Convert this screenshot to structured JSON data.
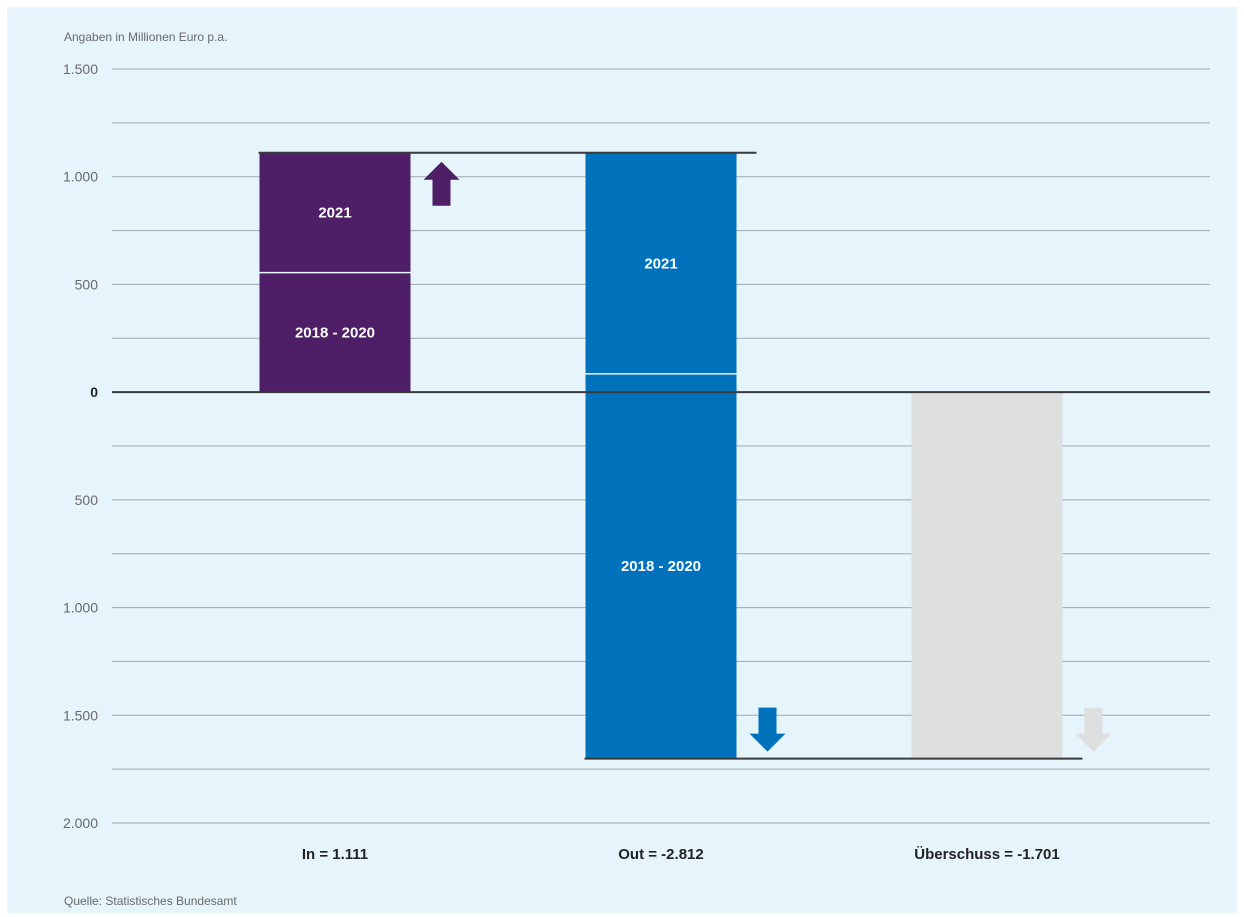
{
  "colors": {
    "background": "#e6f4fb",
    "grid": "#9fa8ad",
    "baseline": "#3a3a3a",
    "in": "#4e1f66",
    "out": "#0072bc",
    "surplus": "#dedfdf",
    "divider": "#e6f4fb",
    "label_light": "#ffffff",
    "tick_text": "#6a6a6a",
    "note_text": "#6a6a6a",
    "category_text": "#222222"
  },
  "unit_note": "Angaben in Millionen Euro p.a.",
  "source_note": "Quelle: Statistisches Bundesamt",
  "chart_data": {
    "type": "bar",
    "title": "",
    "xlabel": "",
    "ylabel": "",
    "ylim": [
      -2000,
      1500
    ],
    "grid": true,
    "y_step": 250,
    "y_ticks": [
      {
        "value": 1500,
        "label": "1.500",
        "bold": false
      },
      {
        "value": 1000,
        "label": "1.000",
        "bold": false
      },
      {
        "value": 500,
        "label": "500",
        "bold": false
      },
      {
        "value": 0,
        "label": "0",
        "bold": true
      },
      {
        "value": -500,
        "label": "500",
        "bold": false
      },
      {
        "value": -1000,
        "label": "1.000",
        "bold": false
      },
      {
        "value": -1500,
        "label": "1.500",
        "bold": false
      },
      {
        "value": -2000,
        "label": "2.000",
        "bold": false
      }
    ],
    "categories": [
      "In = 1.111",
      "Out = -2.812",
      "Überschuss = -1.701"
    ],
    "bars": [
      {
        "category": "In = 1.111",
        "color_key": "in",
        "arrow": "up",
        "arrow_color_key": "in",
        "segments": [
          {
            "label": "2018 - 2020",
            "from": 0,
            "to": 555
          },
          {
            "label": "2021",
            "from": 555,
            "to": 1111
          }
        ]
      },
      {
        "category": "Out = -2.812",
        "color_key": "out",
        "arrow": "down",
        "arrow_color_key": "out",
        "segments": [
          {
            "label": "2021",
            "from": 85,
            "to": 1111
          },
          {
            "label": "2018 - 2020",
            "from": -1701,
            "to": 85
          }
        ]
      },
      {
        "category": "Überschuss = -1.701",
        "color_key": "surplus",
        "arrow": "down",
        "arrow_color_key": "surplus",
        "segments": [
          {
            "label": "",
            "from": -1701,
            "to": 0
          }
        ]
      }
    ],
    "reference_lines": [
      {
        "value": 1111,
        "from_bar": 0,
        "to_bar": 1
      },
      {
        "value": -1701,
        "from_bar": 1,
        "to_bar": 2
      }
    ]
  }
}
